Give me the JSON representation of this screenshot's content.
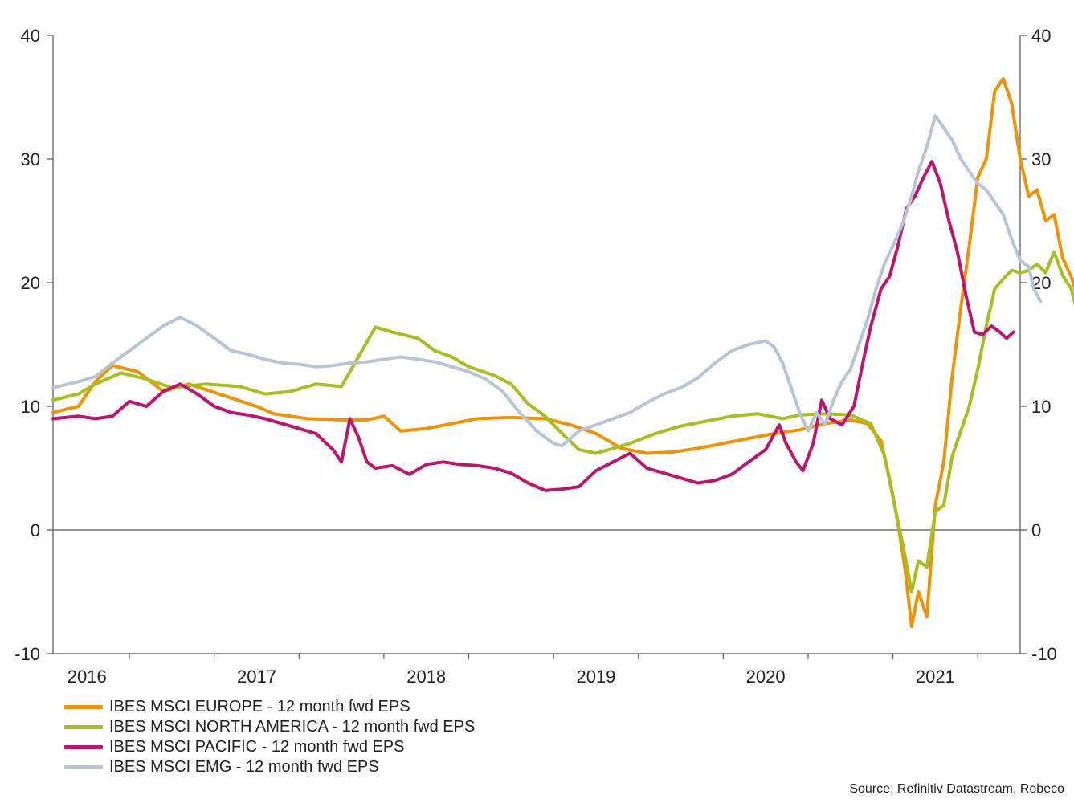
{
  "chart_data": {
    "type": "line",
    "title": "",
    "xlabel": "",
    "ylabel": "",
    "ylim": [
      -10,
      40
    ],
    "yticks": [
      -10,
      0,
      10,
      20,
      30,
      40
    ],
    "xlim": [
      2015.8,
      2021.5
    ],
    "x_tick_marks": [
      2016.25,
      2016.75,
      2017.25,
      2017.75,
      2018.25,
      2018.75,
      2019.25,
      2019.75,
      2020.25,
      2020.75,
      2021.25
    ],
    "x_tick_labels": [
      {
        "label": "2016",
        "at": 2016.0
      },
      {
        "label": "2017",
        "at": 2017.0
      },
      {
        "label": "2018",
        "at": 2018.0
      },
      {
        "label": "2019",
        "at": 2019.0
      },
      {
        "label": "2020",
        "at": 2020.0
      },
      {
        "label": "2021",
        "at": 2021.0
      }
    ],
    "reference_line": 0,
    "series": [
      {
        "name": "IBES MSCI EUROPE - 12 month fwd EPS",
        "color": "#f39200",
        "points": [
          [
            2015.8,
            9.5
          ],
          [
            2015.95,
            10.0
          ],
          [
            2016.05,
            12.0
          ],
          [
            2016.15,
            13.3
          ],
          [
            2016.3,
            12.8
          ],
          [
            2016.45,
            11.2
          ],
          [
            2016.6,
            11.8
          ],
          [
            2016.8,
            10.9
          ],
          [
            2017.0,
            10.0
          ],
          [
            2017.1,
            9.4
          ],
          [
            2017.3,
            9.0
          ],
          [
            2017.5,
            8.9
          ],
          [
            2017.65,
            8.9
          ],
          [
            2017.75,
            9.2
          ],
          [
            2017.85,
            8.0
          ],
          [
            2018.0,
            8.2
          ],
          [
            2018.15,
            8.6
          ],
          [
            2018.3,
            9.0
          ],
          [
            2018.5,
            9.1
          ],
          [
            2018.7,
            9.0
          ],
          [
            2018.85,
            8.5
          ],
          [
            2019.0,
            7.8
          ],
          [
            2019.15,
            6.6
          ],
          [
            2019.3,
            6.2
          ],
          [
            2019.45,
            6.3
          ],
          [
            2019.6,
            6.6
          ],
          [
            2019.75,
            7.0
          ],
          [
            2019.9,
            7.4
          ],
          [
            2020.05,
            7.8
          ],
          [
            2020.2,
            8.1
          ],
          [
            2020.35,
            8.6
          ],
          [
            2020.5,
            8.9
          ],
          [
            2020.6,
            8.6
          ],
          [
            2020.68,
            7.2
          ],
          [
            2020.74,
            3.5
          ],
          [
            2020.78,
            0.5
          ],
          [
            2020.82,
            -3.0
          ],
          [
            2020.86,
            -7.8
          ],
          [
            2020.9,
            -5.0
          ],
          [
            2020.95,
            -7.0
          ],
          [
            2021.0,
            2.0
          ],
          [
            2021.05,
            5.5
          ],
          [
            2021.1,
            12.5
          ],
          [
            2021.15,
            18.0
          ],
          [
            2021.2,
            23.0
          ],
          [
            2021.25,
            28.5
          ],
          [
            2021.3,
            30.0
          ],
          [
            2021.35,
            35.5
          ],
          [
            2021.4,
            36.5
          ],
          [
            2021.45,
            34.5
          ],
          [
            2021.5,
            30.0
          ],
          [
            2021.55,
            27.0
          ],
          [
            2021.6,
            27.5
          ],
          [
            2021.65,
            25.0
          ],
          [
            2021.7,
            25.5
          ],
          [
            2021.75,
            22.0
          ],
          [
            2021.8,
            20.5
          ],
          [
            2021.85,
            18.3
          ]
        ]
      },
      {
        "name": "IBES MSCI NORTH AMERICA - 12 month fwd EPS",
        "color": "#a5bf1c",
        "points": [
          [
            2015.8,
            10.5
          ],
          [
            2015.95,
            11.0
          ],
          [
            2016.05,
            11.8
          ],
          [
            2016.2,
            12.7
          ],
          [
            2016.35,
            12.2
          ],
          [
            2016.5,
            11.5
          ],
          [
            2016.7,
            11.8
          ],
          [
            2016.9,
            11.6
          ],
          [
            2017.05,
            11.0
          ],
          [
            2017.2,
            11.2
          ],
          [
            2017.35,
            11.8
          ],
          [
            2017.5,
            11.6
          ],
          [
            2017.6,
            14.0
          ],
          [
            2017.7,
            16.4
          ],
          [
            2017.8,
            16.0
          ],
          [
            2017.95,
            15.5
          ],
          [
            2018.05,
            14.5
          ],
          [
            2018.15,
            14.0
          ],
          [
            2018.25,
            13.2
          ],
          [
            2018.4,
            12.5
          ],
          [
            2018.5,
            11.8
          ],
          [
            2018.6,
            10.2
          ],
          [
            2018.7,
            9.2
          ],
          [
            2018.8,
            7.8
          ],
          [
            2018.9,
            6.5
          ],
          [
            2019.0,
            6.2
          ],
          [
            2019.1,
            6.6
          ],
          [
            2019.2,
            7.0
          ],
          [
            2019.35,
            7.8
          ],
          [
            2019.5,
            8.4
          ],
          [
            2019.65,
            8.8
          ],
          [
            2019.8,
            9.2
          ],
          [
            2019.95,
            9.4
          ],
          [
            2020.1,
            9.0
          ],
          [
            2020.2,
            9.3
          ],
          [
            2020.35,
            9.4
          ],
          [
            2020.5,
            9.3
          ],
          [
            2020.62,
            8.6
          ],
          [
            2020.7,
            6.0
          ],
          [
            2020.76,
            2.0
          ],
          [
            2020.82,
            -2.0
          ],
          [
            2020.86,
            -5.0
          ],
          [
            2020.9,
            -2.5
          ],
          [
            2020.95,
            -3.0
          ],
          [
            2021.0,
            1.5
          ],
          [
            2021.05,
            2.0
          ],
          [
            2021.1,
            6.0
          ],
          [
            2021.15,
            8.0
          ],
          [
            2021.2,
            10.0
          ],
          [
            2021.25,
            13.0
          ],
          [
            2021.3,
            16.5
          ],
          [
            2021.35,
            19.5
          ],
          [
            2021.4,
            20.3
          ],
          [
            2021.45,
            21.0
          ],
          [
            2021.5,
            20.8
          ],
          [
            2021.55,
            21.0
          ],
          [
            2021.6,
            21.5
          ],
          [
            2021.65,
            20.8
          ],
          [
            2021.7,
            22.5
          ],
          [
            2021.75,
            20.6
          ],
          [
            2021.8,
            19.5
          ],
          [
            2021.82,
            18.5
          ],
          [
            2021.85,
            16.5
          ]
        ]
      },
      {
        "name": "IBES MSCI PACIFIC - 12 month fwd EPS",
        "color": "#c0136d",
        "points": [
          [
            2015.8,
            9.0
          ],
          [
            2015.95,
            9.2
          ],
          [
            2016.05,
            9.0
          ],
          [
            2016.15,
            9.2
          ],
          [
            2016.25,
            10.4
          ],
          [
            2016.35,
            10.0
          ],
          [
            2016.45,
            11.2
          ],
          [
            2016.55,
            11.8
          ],
          [
            2016.65,
            11.0
          ],
          [
            2016.75,
            10.0
          ],
          [
            2016.85,
            9.5
          ],
          [
            2016.95,
            9.3
          ],
          [
            2017.05,
            9.0
          ],
          [
            2017.15,
            8.6
          ],
          [
            2017.25,
            8.2
          ],
          [
            2017.35,
            7.8
          ],
          [
            2017.45,
            6.5
          ],
          [
            2017.5,
            5.5
          ],
          [
            2017.55,
            9.0
          ],
          [
            2017.6,
            7.5
          ],
          [
            2017.65,
            5.5
          ],
          [
            2017.7,
            5.0
          ],
          [
            2017.8,
            5.2
          ],
          [
            2017.9,
            4.5
          ],
          [
            2018.0,
            5.3
          ],
          [
            2018.1,
            5.5
          ],
          [
            2018.2,
            5.3
          ],
          [
            2018.3,
            5.2
          ],
          [
            2018.4,
            5.0
          ],
          [
            2018.5,
            4.6
          ],
          [
            2018.6,
            3.8
          ],
          [
            2018.7,
            3.2
          ],
          [
            2018.8,
            3.3
          ],
          [
            2018.9,
            3.5
          ],
          [
            2019.0,
            4.8
          ],
          [
            2019.1,
            5.5
          ],
          [
            2019.2,
            6.2
          ],
          [
            2019.3,
            5.0
          ],
          [
            2019.4,
            4.6
          ],
          [
            2019.5,
            4.2
          ],
          [
            2019.6,
            3.8
          ],
          [
            2019.7,
            4.0
          ],
          [
            2019.8,
            4.5
          ],
          [
            2019.9,
            5.5
          ],
          [
            2020.0,
            6.5
          ],
          [
            2020.08,
            8.5
          ],
          [
            2020.12,
            7.0
          ],
          [
            2020.18,
            5.5
          ],
          [
            2020.22,
            4.8
          ],
          [
            2020.28,
            7.0
          ],
          [
            2020.33,
            10.5
          ],
          [
            2020.38,
            9.0
          ],
          [
            2020.45,
            8.5
          ],
          [
            2020.52,
            10.0
          ],
          [
            2020.58,
            14.0
          ],
          [
            2020.62,
            16.5
          ],
          [
            2020.68,
            19.5
          ],
          [
            2020.73,
            20.5
          ],
          [
            2020.78,
            23.0
          ],
          [
            2020.83,
            26.0
          ],
          [
            2020.88,
            27.0
          ],
          [
            2020.93,
            28.5
          ],
          [
            2020.98,
            29.8
          ],
          [
            2021.03,
            28.0
          ],
          [
            2021.08,
            25.0
          ],
          [
            2021.13,
            22.5
          ],
          [
            2021.18,
            19.0
          ],
          [
            2021.23,
            16.0
          ],
          [
            2021.28,
            15.8
          ],
          [
            2021.33,
            16.5
          ],
          [
            2021.38,
            16.0
          ],
          [
            2021.42,
            15.5
          ],
          [
            2021.46,
            16.0
          ]
        ]
      },
      {
        "name": "IBES MSCI EMG - 12 month fwd EPS",
        "color": "#b8c4d6",
        "points": [
          [
            2015.8,
            11.5
          ],
          [
            2015.95,
            12.0
          ],
          [
            2016.05,
            12.4
          ],
          [
            2016.15,
            13.5
          ],
          [
            2016.25,
            14.5
          ],
          [
            2016.35,
            15.5
          ],
          [
            2016.45,
            16.5
          ],
          [
            2016.55,
            17.2
          ],
          [
            2016.65,
            16.5
          ],
          [
            2016.75,
            15.5
          ],
          [
            2016.85,
            14.5
          ],
          [
            2016.95,
            14.2
          ],
          [
            2017.05,
            13.8
          ],
          [
            2017.15,
            13.5
          ],
          [
            2017.25,
            13.4
          ],
          [
            2017.35,
            13.2
          ],
          [
            2017.45,
            13.3
          ],
          [
            2017.55,
            13.5
          ],
          [
            2017.65,
            13.6
          ],
          [
            2017.75,
            13.8
          ],
          [
            2017.85,
            14.0
          ],
          [
            2017.95,
            13.8
          ],
          [
            2018.05,
            13.6
          ],
          [
            2018.15,
            13.2
          ],
          [
            2018.25,
            12.8
          ],
          [
            2018.35,
            12.2
          ],
          [
            2018.45,
            11.2
          ],
          [
            2018.55,
            9.5
          ],
          [
            2018.65,
            8.0
          ],
          [
            2018.75,
            7.0
          ],
          [
            2018.8,
            6.8
          ],
          [
            2018.9,
            8.0
          ],
          [
            2019.0,
            8.5
          ],
          [
            2019.1,
            9.0
          ],
          [
            2019.2,
            9.5
          ],
          [
            2019.3,
            10.3
          ],
          [
            2019.4,
            11.0
          ],
          [
            2019.5,
            11.5
          ],
          [
            2019.6,
            12.3
          ],
          [
            2019.7,
            13.5
          ],
          [
            2019.8,
            14.5
          ],
          [
            2019.9,
            15.0
          ],
          [
            2020.0,
            15.3
          ],
          [
            2020.05,
            14.8
          ],
          [
            2020.1,
            13.5
          ],
          [
            2020.15,
            11.5
          ],
          [
            2020.2,
            9.5
          ],
          [
            2020.25,
            8.0
          ],
          [
            2020.3,
            9.5
          ],
          [
            2020.35,
            8.5
          ],
          [
            2020.4,
            10.5
          ],
          [
            2020.45,
            12.0
          ],
          [
            2020.5,
            13.0
          ],
          [
            2020.55,
            15.0
          ],
          [
            2020.6,
            17.0
          ],
          [
            2020.65,
            19.5
          ],
          [
            2020.7,
            21.5
          ],
          [
            2020.75,
            23.0
          ],
          [
            2020.8,
            24.5
          ],
          [
            2020.85,
            26.5
          ],
          [
            2020.9,
            29.0
          ],
          [
            2020.95,
            31.0
          ],
          [
            2021.0,
            33.5
          ],
          [
            2021.05,
            32.5
          ],
          [
            2021.1,
            31.5
          ],
          [
            2021.15,
            30.0
          ],
          [
            2021.2,
            29.0
          ],
          [
            2021.25,
            28.0
          ],
          [
            2021.3,
            27.5
          ],
          [
            2021.35,
            26.5
          ],
          [
            2021.4,
            25.5
          ],
          [
            2021.45,
            23.5
          ],
          [
            2021.5,
            21.8
          ],
          [
            2021.55,
            21.3
          ],
          [
            2021.58,
            19.5
          ],
          [
            2021.62,
            18.5
          ]
        ]
      }
    ]
  },
  "legend": [
    {
      "label": "IBES MSCI EUROPE - 12 month fwd EPS",
      "color": "#f39200"
    },
    {
      "label": "IBES MSCI NORTH AMERICA - 12 month fwd EPS",
      "color": "#a5bf1c"
    },
    {
      "label": "IBES MSCI PACIFIC - 12 month fwd EPS",
      "color": "#c0136d"
    },
    {
      "label": "IBES MSCI EMG - 12 month fwd EPS",
      "color": "#b8c4d6"
    }
  ],
  "source": "Source: Refinitiv Datastream, Robeco"
}
